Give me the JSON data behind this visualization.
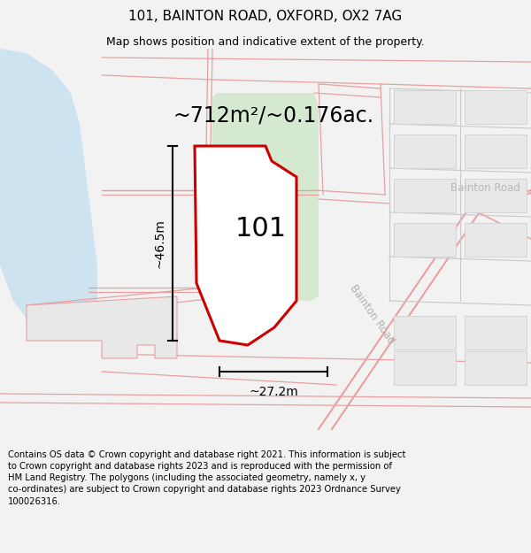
{
  "title": "101, BAINTON ROAD, OXFORD, OX2 7AG",
  "subtitle": "Map shows position and indicative extent of the property.",
  "area_text": "~712m²/~0.176ac.",
  "label_101": "101",
  "dim_width": "~27.2m",
  "dim_height": "~46.5m",
  "road_label": "Bainton Road",
  "road_label2": "Bainton Road",
  "footer_line1": "Contains OS data © Crown copyright and database right 2021. This information is subject",
  "footer_line2": "to Crown copyright and database rights 2023 and is reproduced with the permission of",
  "footer_line3": "HM Land Registry. The polygons (including the associated geometry, namely x, y",
  "footer_line4": "co-ordinates) are subject to Crown copyright and database rights 2023 Ordnance Survey",
  "footer_line5": "100026316.",
  "bg_color": "#f2f2f2",
  "map_bg": "#ffffff",
  "water_color": "#cde3f0",
  "green_color": "#d5e8d0",
  "pink_line": "#e8a0a0",
  "red_outline": "#cc0000",
  "gray_build": "#e8e8e8",
  "gray_build_edge": "#d0d0d0",
  "dim_line_color": "#000000",
  "road_label_color": "#aaaaaa",
  "title_fontsize": 11,
  "subtitle_fontsize": 9,
  "area_fontsize": 17,
  "label_fontsize": 22,
  "dim_fontsize": 10,
  "footer_fontsize": 7.2,
  "road_fontsize": 8.5
}
